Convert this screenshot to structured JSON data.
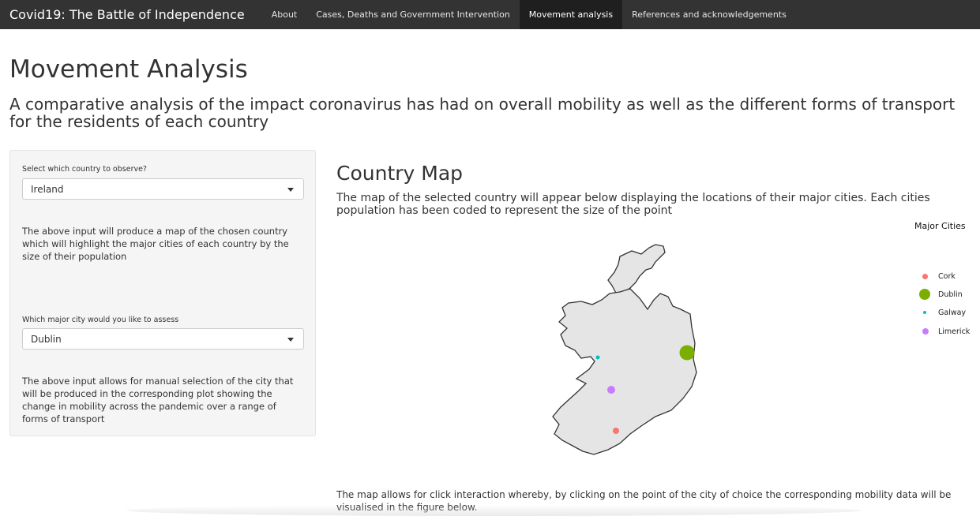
{
  "navbar": {
    "brand": "Covid19: The Battle of Independence",
    "items": [
      {
        "label": "About"
      },
      {
        "label": "Cases, Deaths and Government Intervention"
      },
      {
        "label": "Movement analysis"
      },
      {
        "label": "References and acknowledgements"
      }
    ],
    "active_index": 2
  },
  "page": {
    "title": "Movement Analysis",
    "subtitle": "A comparative analysis of the impact coronavirus has had on overall mobility as well as the different forms of transport for the residents of each country"
  },
  "sidebar": {
    "country_label": "Select which country to observe?",
    "country_value": "Ireland",
    "country_help": "The above input will produce a map of the chosen country which will highlight the major cities of each country by the size of their population",
    "city_label": "Which major city would you like to assess",
    "city_value": "Dublin",
    "city_help": "The above input allows for manual selection of the city that will be produced in the corresponding plot showing the change in mobility across the pandemic over a range of forms of transport"
  },
  "main": {
    "title": "Country Map",
    "description": "The map of the selected country will appear below displaying the locations of their major cities. Each cities population has been coded to represent the size of the point",
    "footer": "The map allows for click interaction whereby, by clicking on the point of the city of choice the corresponding mobility data will be visualised in the figure below."
  },
  "legend": {
    "title": "Major Cities",
    "items": [
      {
        "name": "Cork",
        "color": "#f8766d"
      },
      {
        "name": "Dublin",
        "color": "#7cae00"
      },
      {
        "name": "Galway",
        "color": "#00bfc4"
      },
      {
        "name": "Limerick",
        "color": "#c77cff"
      }
    ]
  },
  "colors": {
    "navbar_bg": "#333333",
    "navbar_active_bg": "#1f1f1f",
    "map_fill": "#e5e5e5",
    "map_stroke": "#333333"
  }
}
